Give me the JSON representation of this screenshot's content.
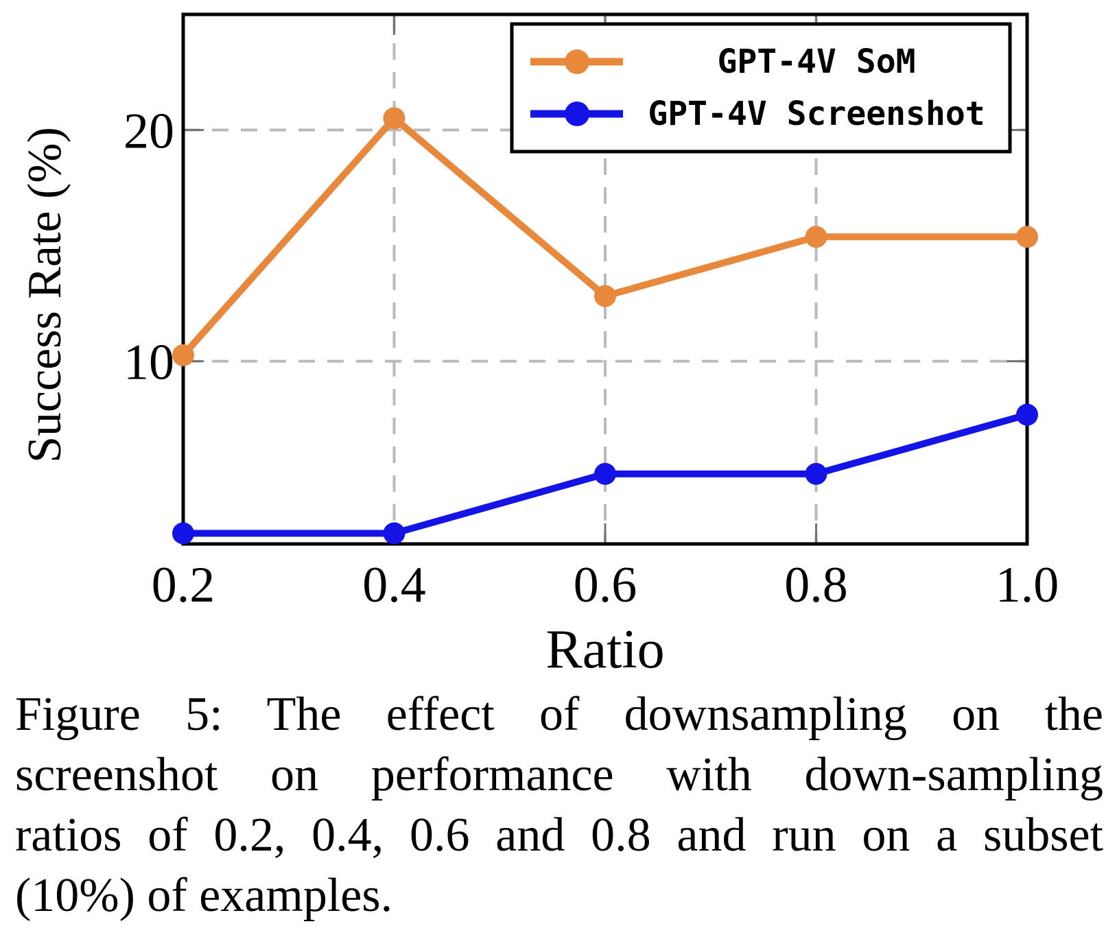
{
  "figure": {
    "caption_lines": [
      "Figure 5: The effect of downsampling on the",
      "screenshot on performance with down-sampling",
      "ratios of 0.2, 0.4, 0.6 and 0.8 and run on a subset",
      "(10%) of examples."
    ]
  },
  "chart_data": {
    "type": "line",
    "title": "",
    "xlabel": "Ratio",
    "ylabel": "Success Rate (%)",
    "x": [
      0.2,
      0.4,
      0.6,
      0.8,
      1.0
    ],
    "x_tick_labels": [
      "0.2",
      "0.4",
      "0.6",
      "0.8",
      "1.0"
    ],
    "y_ticks": [
      {
        "value": 10,
        "label": "10"
      },
      {
        "value": 20,
        "label": "20"
      }
    ],
    "x_grid_at": [
      0.4,
      0.6,
      0.8
    ],
    "xlim": [
      0.2,
      1.0
    ],
    "ylim": [
      2.1,
      25.0
    ],
    "grid": "dashed",
    "legend_position": "top-right",
    "series": [
      {
        "name": "GPT-4V SoM",
        "color": "#E8883C",
        "values": [
          10.26,
          20.51,
          12.82,
          15.38,
          15.38
        ]
      },
      {
        "name": "GPT-4V Screenshot",
        "color": "#1414E6",
        "values": [
          2.56,
          2.56,
          5.13,
          5.13,
          7.69
        ]
      }
    ],
    "colors": {
      "axis": "#000000",
      "grid": "#BABABA",
      "tick": "#737373",
      "legend_border": "#000000",
      "legend_background": "#ffffff"
    }
  }
}
